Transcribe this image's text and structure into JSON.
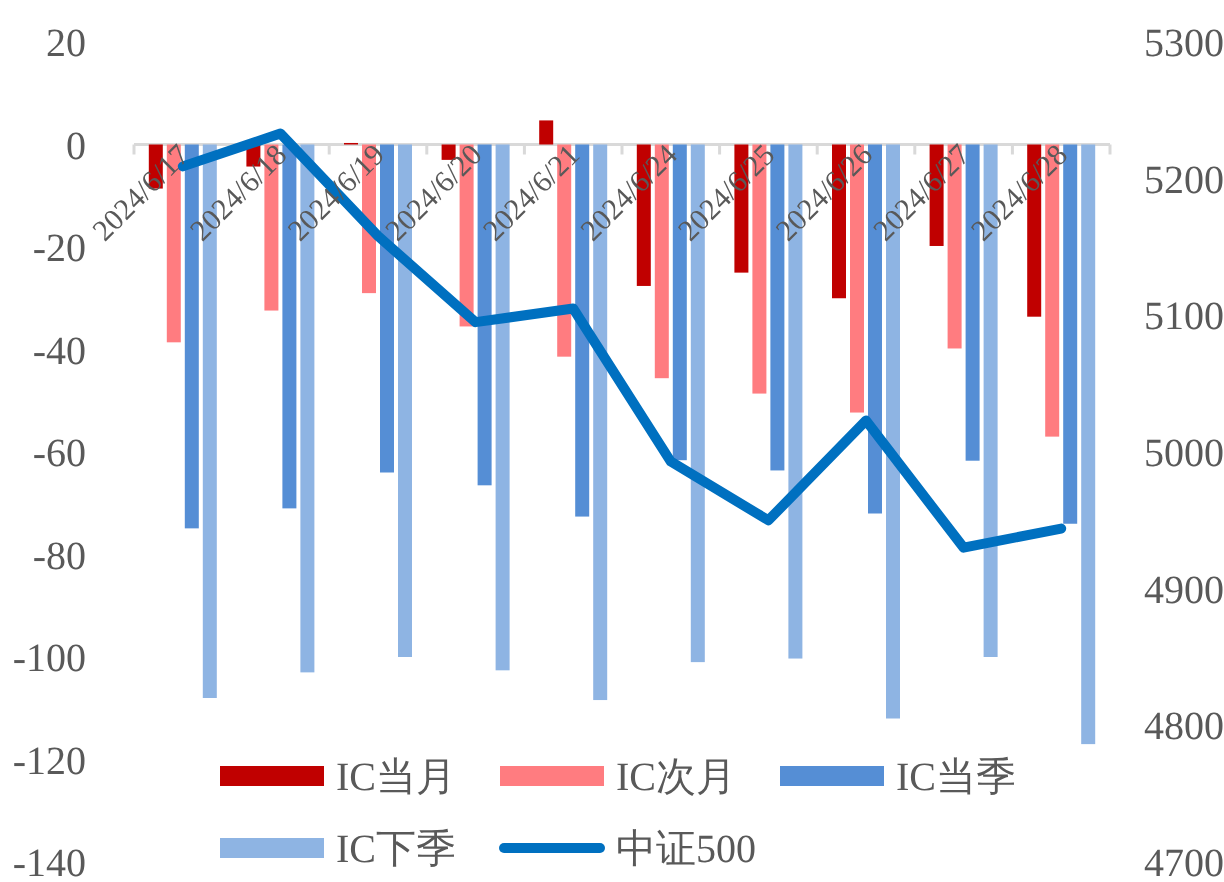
{
  "chart_data": {
    "type": "bar",
    "categories": [
      "2024/6/17",
      "2024/6/18",
      "2024/6/19",
      "2024/6/20",
      "2024/6/21",
      "2024/6/24",
      "2024/6/25",
      "2024/6/26",
      "2024/6/27",
      "2024/6/28"
    ],
    "series": [
      {
        "name": "IC当月",
        "color": "#c00000",
        "values": [
          -8.6,
          -4.3,
          0.3,
          -3,
          4.7,
          -27.6,
          -25,
          -30,
          -19.8,
          -33.6
        ]
      },
      {
        "name": "IC次月",
        "color": "#ff7c80",
        "values": [
          -38.6,
          -32.4,
          -29,
          -35.5,
          -41.4,
          -45.6,
          -48.6,
          -52.3,
          -39.8,
          -57
        ]
      },
      {
        "name": "IC当季",
        "color": "#558ed5",
        "values": [
          -74.9,
          -71,
          -64,
          -66.5,
          -72.6,
          -61.6,
          -63.6,
          -72,
          -61.7,
          -74
        ]
      },
      {
        "name": "IC下季",
        "color": "#8eb4e3",
        "values": [
          -108,
          -103,
          -100,
          -102.6,
          -108.4,
          -101,
          -100.3,
          -112,
          -100,
          -117
        ]
      },
      {
        "name": "中证500",
        "color": "#0070c0",
        "type": "line",
        "axis": "y2",
        "line_style": "solid",
        "values": [
          5209,
          5233,
          5158,
          5095,
          5105,
          4993,
          4950,
          5023,
          4930,
          4944
        ]
      }
    ],
    "ylim": [
      -140,
      20
    ],
    "yticks": [
      -140,
      -120,
      -100,
      -80,
      -60,
      -40,
      -20,
      0,
      20
    ],
    "y2lim": [
      4700,
      5300
    ],
    "y2ticks": [
      4700,
      4800,
      4900,
      5000,
      5100,
      5200,
      5300
    ],
    "legend": "bottom",
    "grid": false
  }
}
